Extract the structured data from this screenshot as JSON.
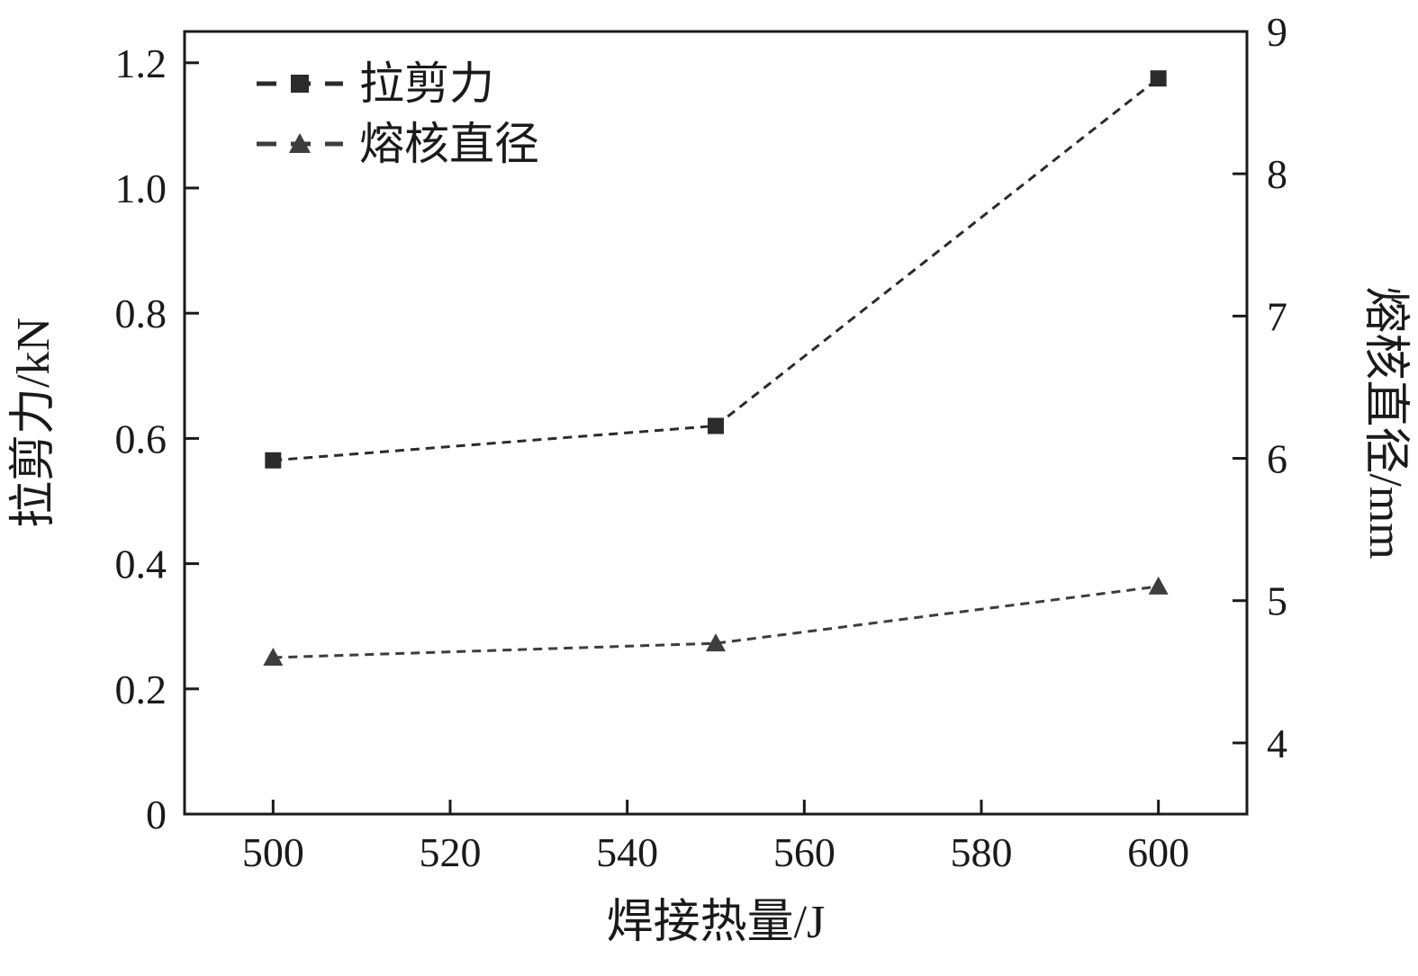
{
  "chart_data": {
    "type": "line",
    "title": "",
    "xlabel": "焊接热量/J",
    "ylabel_left": "拉剪力/kN",
    "ylabel_right": "熔核直径/mm",
    "xlim": [
      490,
      610
    ],
    "ylim_left": [
      0,
      1.25
    ],
    "ylim_right": [
      3.5,
      9
    ],
    "xticks": [
      500,
      520,
      540,
      560,
      580,
      600
    ],
    "yticks_left": [
      0,
      0.2,
      0.4,
      0.6,
      0.8,
      1.0,
      1.2
    ],
    "yticks_left_labels": [
      "0",
      "0.2",
      "0.4",
      "0.6",
      "0.8",
      "1.0",
      "1.2"
    ],
    "yticks_right": [
      4,
      5,
      6,
      7,
      8,
      9
    ],
    "yticks_right_labels": [
      "4",
      "5",
      "6",
      "7",
      "8",
      "9"
    ],
    "grid": false,
    "legend_position": "top-left",
    "series": [
      {
        "name": "拉剪力",
        "axis": "left",
        "marker": "square",
        "color": "#2b2b2b",
        "line_style": "dashed",
        "x": [
          500,
          550,
          600
        ],
        "y": [
          0.565,
          0.62,
          1.175
        ]
      },
      {
        "name": "熔核直径",
        "axis": "right",
        "marker": "triangle",
        "color": "#3d3d3d",
        "line_style": "dashed",
        "x": [
          500,
          550,
          600
        ],
        "y": [
          4.6,
          4.7,
          5.1
        ]
      }
    ]
  },
  "colors": {
    "background": "#ffffff",
    "axis": "#1a1a1a",
    "text": "#1a1a1a"
  }
}
